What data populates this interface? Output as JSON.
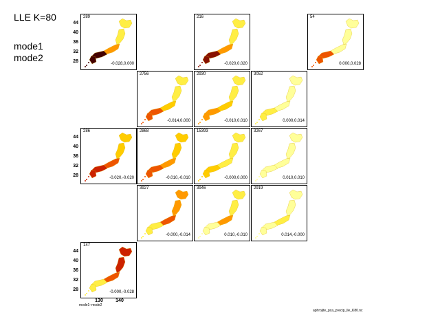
{
  "title": "LLE K=80",
  "modes": [
    "mode1",
    "mode2"
  ],
  "x_axis_label": "mode1–mode2",
  "source_file": "aphrojite_pca_precip_lle_K80.nc",
  "colors": {
    "background": "#ffffff",
    "border": "#000000",
    "intensity_scale": [
      "#ffff99",
      "#ffee44",
      "#ffcc00",
      "#ff9900",
      "#ee5500",
      "#cc2200",
      "#881100",
      "#440000"
    ]
  },
  "chart_data": {
    "type": "heatmap",
    "description": "Grid of Japan precipitation maps for LLE node positions in (mode1, mode2) space",
    "y_ticks": [
      "44",
      "40",
      "36",
      "32",
      "28"
    ],
    "x_ticks": [
      "130",
      "140"
    ],
    "panels": [
      {
        "row": 0,
        "col": 0,
        "count": "289",
        "coords": "-0.028,0.000",
        "north": 1,
        "center": 3,
        "south": 7,
        "show_y": true,
        "show_x": false
      },
      {
        "row": 0,
        "col": 2,
        "count": "216",
        "coords": "-0.020,0.020",
        "north": 1,
        "center": 3,
        "south": 6,
        "show_y": false,
        "show_x": false
      },
      {
        "row": 0,
        "col": 4,
        "count": "54",
        "coords": "0.000,0.028",
        "north": 0,
        "center": 0,
        "south": 4,
        "show_y": false,
        "show_x": false
      },
      {
        "row": 1,
        "col": 1,
        "count": "2756",
        "coords": "-0.014,0.000",
        "north": 1,
        "center": 2,
        "south": 4,
        "show_y": false,
        "show_x": false
      },
      {
        "row": 1,
        "col": 2,
        "count": "2930",
        "coords": "-0.010,0.010",
        "north": 1,
        "center": 2,
        "south": 3,
        "show_y": false,
        "show_x": false
      },
      {
        "row": 1,
        "col": 3,
        "count": "3052",
        "coords": "0.000,0.014",
        "north": 0,
        "center": 0,
        "south": 1,
        "show_y": false,
        "show_x": false
      },
      {
        "row": 2,
        "col": 0,
        "count": "286",
        "coords": "-0.020,-0.020",
        "north": 2,
        "center": 4,
        "south": 5,
        "show_y": true,
        "show_x": false
      },
      {
        "row": 2,
        "col": 1,
        "count": "2868",
        "coords": "-0.010,-0.010",
        "north": 2,
        "center": 3,
        "south": 4,
        "show_y": false,
        "show_x": false
      },
      {
        "row": 2,
        "col": 2,
        "count": "15393",
        "coords": "-0.000,0.000",
        "north": 1,
        "center": 1,
        "south": 2,
        "show_y": false,
        "show_x": false
      },
      {
        "row": 2,
        "col": 3,
        "count": "3267",
        "coords": "0.010,0.010",
        "north": 0,
        "center": 0,
        "south": 0,
        "show_y": false,
        "show_x": false
      },
      {
        "row": 3,
        "col": 1,
        "count": "3927",
        "coords": "-0.000,-0.014",
        "north": 3,
        "center": 4,
        "south": 1,
        "show_y": false,
        "show_x": false
      },
      {
        "row": 3,
        "col": 2,
        "count": "3946",
        "coords": "0.010,-0.010",
        "north": 1,
        "center": 3,
        "south": 0,
        "show_y": false,
        "show_x": false
      },
      {
        "row": 3,
        "col": 3,
        "count": "2919",
        "coords": "0.014,-0.000",
        "north": 0,
        "center": 1,
        "south": 0,
        "show_y": false,
        "show_x": false
      },
      {
        "row": 4,
        "col": 0,
        "count": "147",
        "coords": "-0.000,-0.028",
        "north": 5,
        "center": 4,
        "south": 1,
        "show_y": true,
        "show_x": true
      }
    ]
  }
}
